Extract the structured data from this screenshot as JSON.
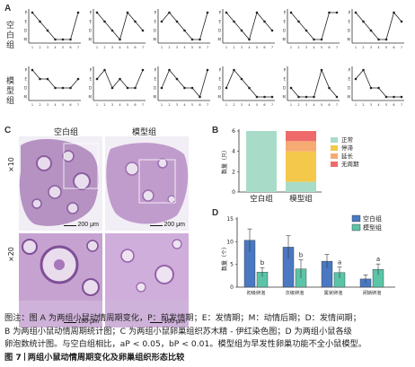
{
  "panel_a": {
    "letter": "A",
    "group1": "空白组",
    "group2": "模型组",
    "y_ticks": [
      "M",
      "D",
      "E",
      "P"
    ],
    "x_ticks": [
      "1",
      "2",
      "3",
      "4",
      "5",
      "6",
      "7",
      "8"
    ]
  },
  "panel_c": {
    "letter": "C",
    "col1": "空白组",
    "col2": "模型组",
    "row1": "×10",
    "row2": "×20",
    "scale1": "200 μm",
    "scale2": "200 μm",
    "scale3": "100 μm",
    "scale4": "100 μm"
  },
  "panel_b": {
    "letter": "B",
    "ylabel": "数量（只）",
    "legend": [
      "正常",
      "停滞",
      "延长",
      "无周期"
    ],
    "categories": [
      "空白组",
      "模型组"
    ],
    "colors": [
      "#a8dcc8",
      "#f3c84b",
      "#f6ab73",
      "#ee6a6a"
    ]
  },
  "panel_d": {
    "letter": "D",
    "ylabel": "数量（个）",
    "legend": [
      "空白组",
      "模型组"
    ],
    "colors": [
      "#4a78c2",
      "#5ac4a6"
    ],
    "stats": [
      "b",
      "b",
      "a",
      "a"
    ]
  },
  "chart_data": [
    {
      "type": "bar",
      "title": "",
      "stacked": true,
      "categories": [
        "空白组",
        "模型组"
      ],
      "series": [
        {
          "name": "正常",
          "values": [
            6,
            1
          ]
        },
        {
          "name": "停滞",
          "values": [
            0,
            3
          ]
        },
        {
          "name": "延长",
          "values": [
            0,
            1
          ]
        },
        {
          "name": "无周期",
          "values": [
            0,
            1
          ]
        }
      ],
      "ylabel": "数量（只）",
      "ylim": [
        0,
        6
      ],
      "yticks": [
        0,
        2,
        4,
        6
      ]
    },
    {
      "type": "bar",
      "title": "",
      "categories": [
        "初级卵泡",
        "次级卵泡",
        "窦状卵泡",
        "闭锁卵泡"
      ],
      "series": [
        {
          "name": "空白组",
          "values": [
            10.3,
            8.8,
            5.7,
            1.8
          ],
          "errors": [
            2.5,
            2.5,
            1.5,
            0.9
          ]
        },
        {
          "name": "模型组",
          "values": [
            3.3,
            4.0,
            3.2,
            3.9
          ],
          "errors": [
            1.0,
            2.0,
            1.2,
            1.2
          ]
        }
      ],
      "ylabel": "数量（个）",
      "ylim": [
        0,
        15
      ],
      "yticks": [
        0,
        5,
        10,
        15
      ]
    }
  ],
  "caption": {
    "lines": [
      "图注：图 A 为两组小鼠动情周期变化，P：前发情期；E：发情期；M：动情后期；D：发情间期；",
      "B 为两组小鼠动情周期统计图；C 为两组小鼠卵巢组织苏木精 - 伊红染色图；D 为两组小鼠各级",
      "卵泡数统计图。与空白组相比，aP < 0.05，bP < 0.01。模型组为早发性卵巢功能不全小鼠模型。"
    ],
    "fig_no": "图 7",
    "fig_title": "两组小鼠动情周期变化及卵巢组织形态比较"
  }
}
